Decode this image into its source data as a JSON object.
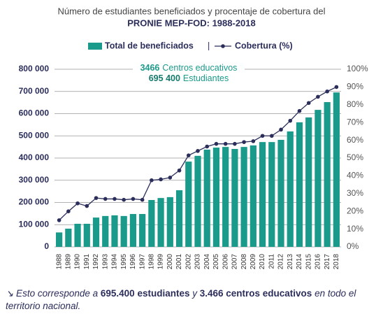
{
  "chart_data": {
    "type": "bar-line",
    "title": "Número de estudiantes beneficiados y procentaje de cobertura del",
    "subtitle": "PRONIE MEP-FOD: 1988-2018",
    "categories": [
      "1988",
      "1989",
      "1990",
      "1991",
      "1992",
      "1993",
      "1994",
      "1995",
      "1996",
      "1997",
      "1998",
      "1999",
      "2000",
      "2001",
      "2002",
      "2003",
      "2004",
      "2005",
      "2006",
      "2007",
      "2008",
      "2009",
      "2010",
      "2011",
      "2012",
      "2013",
      "2014",
      "2015",
      "2016",
      "2017",
      "2018"
    ],
    "series": [
      {
        "name": "Total de beneficiados",
        "type": "bar",
        "color": "#1a9a8a",
        "values": [
          65000,
          82000,
          104000,
          104000,
          132000,
          139000,
          142000,
          139000,
          148000,
          148000,
          211000,
          220000,
          224000,
          255000,
          384000,
          410000,
          438000,
          447000,
          450000,
          441000,
          450000,
          457000,
          472000,
          472000,
          482000,
          520000,
          561000,
          583000,
          617000,
          652000,
          695400
        ]
      },
      {
        "name": "Cobertura (%)",
        "type": "line",
        "axis": "y2",
        "color": "#2b2d5b",
        "values": [
          15,
          20,
          24.5,
          23,
          27.5,
          27,
          27,
          26.5,
          27,
          26.5,
          37.5,
          38,
          39,
          43,
          51.5,
          54,
          56.5,
          58,
          58,
          58,
          59,
          59.5,
          62.5,
          62.5,
          66,
          71,
          76.5,
          81,
          84.5,
          87.5,
          90
        ]
      }
    ],
    "legend_separator": "|",
    "ylim": [
      0,
      800000
    ],
    "yticks": [
      0,
      {
        "value": 100000,
        "label": "100 000"
      },
      {
        "value": 200000,
        "label": "200 000"
      },
      {
        "value": 300000,
        "label": "300 000"
      },
      {
        "value": 400000,
        "label": "400 000"
      },
      {
        "value": 500000,
        "label": "500 000"
      },
      {
        "value": 600000,
        "label": "600 000"
      },
      {
        "value": 700000,
        "label": "700 000"
      },
      {
        "value": 800000,
        "label": "800 000"
      }
    ],
    "y2lim": [
      0,
      100
    ],
    "y2ticks": [
      {
        "value": 0,
        "label": "0%"
      },
      {
        "value": 10,
        "label": "10%"
      },
      {
        "value": 20,
        "label": "20%"
      },
      {
        "value": 30,
        "label": "30%"
      },
      {
        "value": 40,
        "label": "40%"
      },
      {
        "value": 50,
        "label": "50%"
      },
      {
        "value": 60,
        "label": "60%"
      },
      {
        "value": 70,
        "label": "70%"
      },
      {
        "value": 80,
        "label": "80%"
      },
      {
        "value": 90,
        "label": "90%"
      },
      {
        "value": 100,
        "label": "100%"
      }
    ],
    "grid": true,
    "annotation": [
      {
        "number": "3466",
        "text": "Centros educativos"
      },
      {
        "number": "695 400",
        "text": "Estudiantes"
      }
    ]
  },
  "footnote": [
    {
      "text": "↘ Esto corresponde a ",
      "bold": false
    },
    {
      "text": "695.400 estudiantes",
      "bold": true
    },
    {
      "text": " y ",
      "bold": false
    },
    {
      "text": "3.466 centros educativos",
      "bold": true
    },
    {
      "text": " en todo el territorio nacional.",
      "bold": false
    }
  ]
}
